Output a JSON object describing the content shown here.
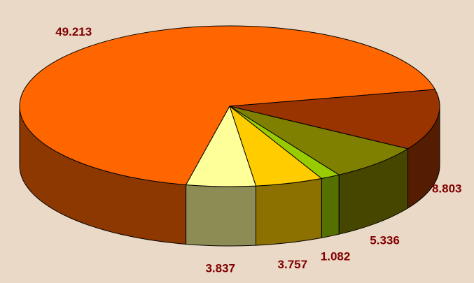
{
  "chart_data": {
    "type": "pie",
    "values": [
      49.213,
      8.803,
      5.336,
      1.082,
      3.757,
      3.837
    ],
    "colors": [
      "#ff6600",
      "#993300",
      "#808000",
      "#99cc00",
      "#ffcc00",
      "#ffff99"
    ]
  }
}
